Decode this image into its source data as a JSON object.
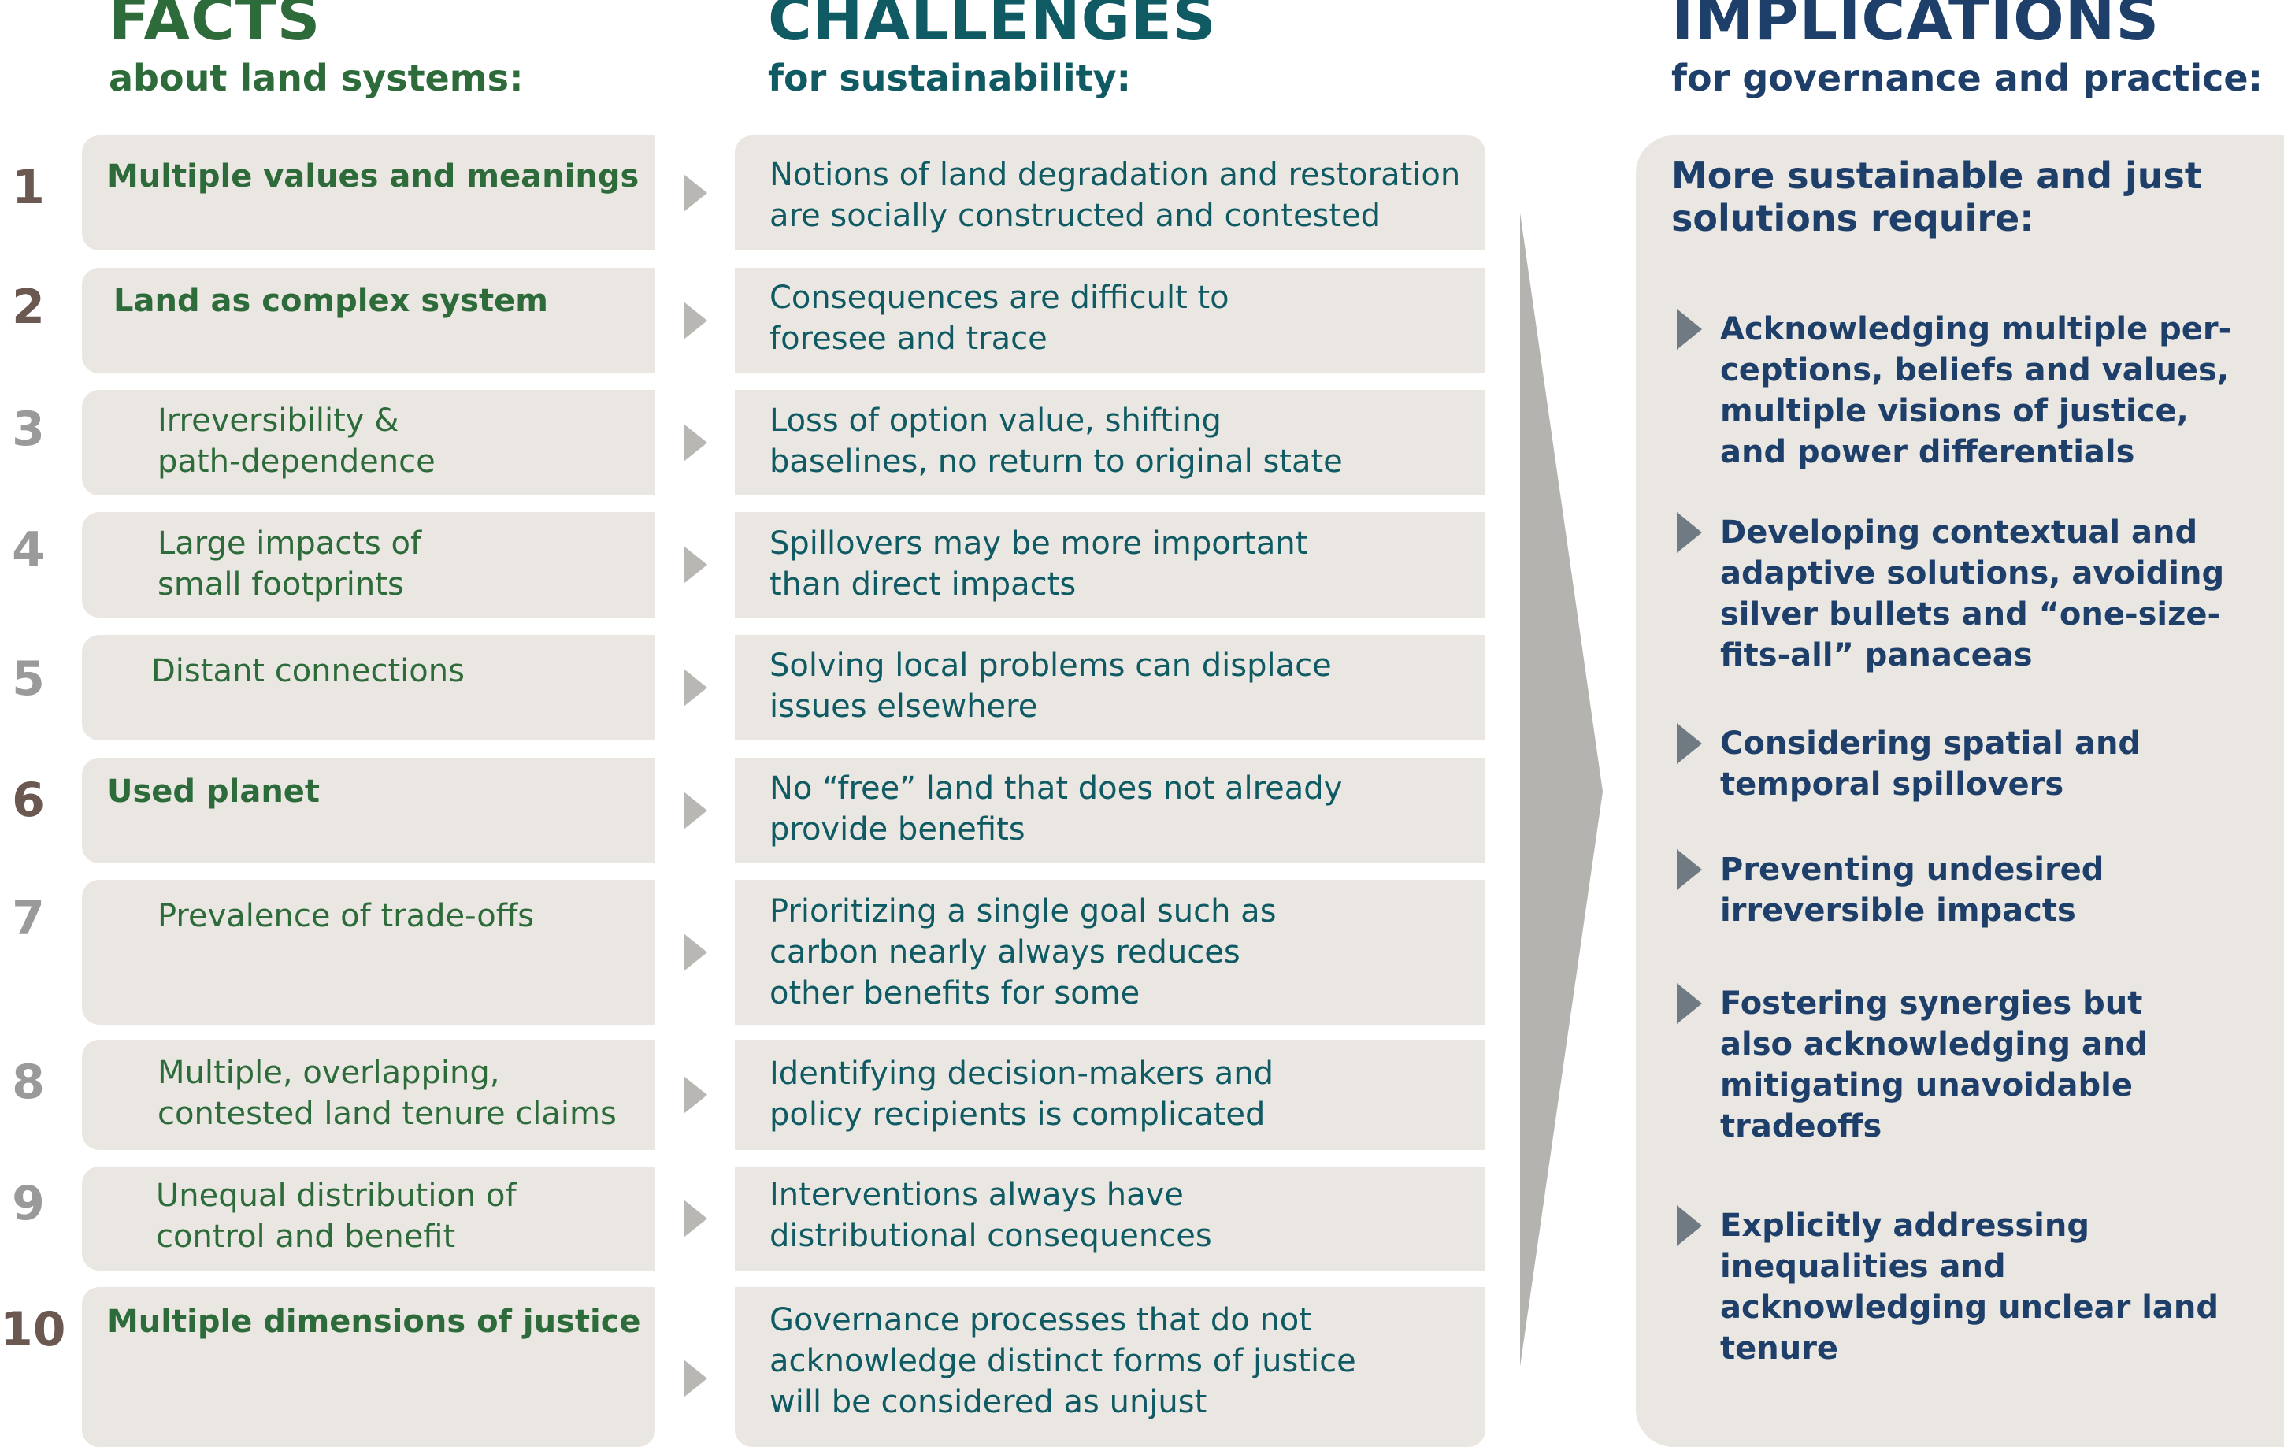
{
  "columns": {
    "facts": {
      "title": "FACTS",
      "subtitle": "about land systems:"
    },
    "challenges": {
      "title": "CHALLENGES",
      "subtitle": "for sustainability:"
    },
    "implications": {
      "title": "IMPLICATIONS",
      "subtitle": "for governance and practice:"
    }
  },
  "rows": [
    {
      "number": "1",
      "fact": [
        "Multiple values and meanings"
      ],
      "fact_bold": true,
      "challenge": [
        "Notions of land degradation and restoration",
        "are socially constructed and contested"
      ]
    },
    {
      "number": "2",
      "fact": [
        "Land as complex system"
      ],
      "fact_bold": true,
      "challenge": [
        "Consequences are difficult to",
        "foresee and trace"
      ]
    },
    {
      "number": "3",
      "fact": [
        "Irreversibility &",
        "path-dependence"
      ],
      "fact_bold": false,
      "challenge": [
        "Loss of option value, shifting",
        "baselines, no return to original state"
      ]
    },
    {
      "number": "4",
      "fact": [
        "Large impacts of",
        "small footprints"
      ],
      "fact_bold": false,
      "challenge": [
        "Spillovers may be more important",
        "than direct impacts"
      ]
    },
    {
      "number": "5",
      "fact": [
        "Distant connections"
      ],
      "fact_bold": false,
      "challenge": [
        "Solving local problems can displace",
        "issues elsewhere"
      ]
    },
    {
      "number": "6",
      "fact": [
        "Used planet"
      ],
      "fact_bold": true,
      "challenge": [
        "No “free” land that does not already",
        "provide benefits"
      ]
    },
    {
      "number": "7",
      "fact": [
        "Prevalence of trade-offs"
      ],
      "fact_bold": false,
      "challenge": [
        "Prioritizing a single goal such as",
        "carbon nearly always reduces",
        "other benefits for some"
      ]
    },
    {
      "number": "8",
      "fact": [
        "Multiple, overlapping,",
        "contested land tenure claims"
      ],
      "fact_bold": false,
      "challenge": [
        "Identifying decision-makers and",
        "policy recipients is complicated"
      ]
    },
    {
      "number": "9",
      "fact": [
        "Unequal distribution of",
        "control and benefit"
      ],
      "fact_bold": false,
      "challenge": [
        "Interventions always have",
        "distributional consequences"
      ]
    },
    {
      "number": "10",
      "fact": [
        "Multiple dimensions of justice"
      ],
      "fact_bold": true,
      "challenge": [
        "Governance processes that do not",
        "acknowledge distinct forms of justice",
        "will be considered as unjust"
      ]
    }
  ],
  "implications": {
    "intro": [
      "More sustainable and just",
      "solutions require:"
    ],
    "items": [
      [
        "Acknowledging multiple per-",
        "ceptions, beliefs and values,",
        "multiple visions of justice,",
        "and power differentials"
      ],
      [
        "Developing contextual and",
        "adaptive solutions, avoiding",
        "silver bullets and “one-size-",
        "fits-all” panaceas"
      ],
      [
        "Considering spatial and",
        "temporal spillovers"
      ],
      [
        "Preventing undesired",
        "irreversible impacts"
      ],
      [
        "Fostering synergies but",
        "also acknowledging and",
        "mitigating unavoidable",
        "tradeoffs"
      ],
      [
        "Explicitly addressing",
        "inequalities and",
        "acknowledging unclear land",
        "tenure"
      ]
    ]
  },
  "colors": {
    "facts_text": "#2e6b3a",
    "challenges_text": "#0f5a63",
    "implications_text": "#1e3f6a",
    "box_fill": "#eae7e2",
    "number_colors": [
      "#6b5850",
      "#6b5850",
      "#9a9a9a",
      "#9a9a9a",
      "#9a9a9a",
      "#6b5850",
      "#9a9a9a",
      "#9a9a9a",
      "#9a9a9a",
      "#6b5850"
    ],
    "row_arrow": "#b9b7b4",
    "big_arrow": "#b4b3b0",
    "implication_arrow": "#6f7a82"
  }
}
